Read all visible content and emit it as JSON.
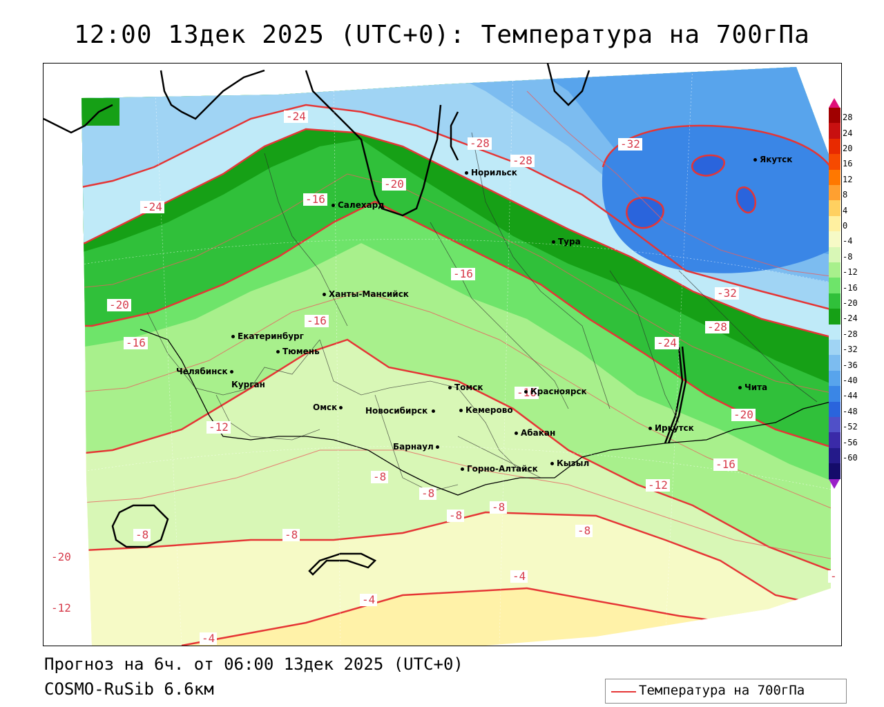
{
  "title": "12:00 13дек 2025 (UTC+0): Температура на 700гПа",
  "footer": {
    "line1": "Прогноз на 6ч. от 06:00 13дек 2025 (UTC+0)",
    "line2": "COSMO-RuSib 6.6км"
  },
  "legend": {
    "label": "Температура на 700гПа",
    "color": "#e53535"
  },
  "colorbar": {
    "ticks": [
      "28",
      "24",
      "20",
      "16",
      "12",
      "8",
      "4",
      "0",
      "-4",
      "-8",
      "-12",
      "-16",
      "-20",
      "-24",
      "-28",
      "-32",
      "-36",
      "-40",
      "-44",
      "-48",
      "-52",
      "-56",
      "-60"
    ],
    "colors": [
      "#a00000",
      "#c81010",
      "#e82a00",
      "#f64a00",
      "#ff7800",
      "#ffa030",
      "#ffd060",
      "#fff0a0",
      "#f6fac6",
      "#d8f7b6",
      "#a8f08c",
      "#6ee46a",
      "#30c03a",
      "#16a016",
      "#bfeaf8",
      "#a0d4f4",
      "#7cbcf0",
      "#58a4ec",
      "#3a86e6",
      "#2a64dc",
      "#5050c8",
      "#3a2aa8",
      "#241a8a",
      "#140c6a"
    ]
  },
  "cities": [
    {
      "name": "Норильск"
    },
    {
      "name": "Якутск"
    },
    {
      "name": "Салехард"
    },
    {
      "name": "Тура"
    },
    {
      "name": "Ханты-Мансийск"
    },
    {
      "name": "Екатеринбург"
    },
    {
      "name": "Тюмень"
    },
    {
      "name": "Челябинск"
    },
    {
      "name": "Курган"
    },
    {
      "name": "Омск"
    },
    {
      "name": "Новосибирск"
    },
    {
      "name": "Томск"
    },
    {
      "name": "Кемерово"
    },
    {
      "name": "Красноярск"
    },
    {
      "name": "Абакан"
    },
    {
      "name": "Барнаул"
    },
    {
      "name": "Горно-Алтайск"
    },
    {
      "name": "Кызыл"
    },
    {
      "name": "Иркутск"
    },
    {
      "name": "Чита"
    }
  ],
  "contour_labels": [
    "-24",
    "-28",
    "-28",
    "-32",
    "-20",
    "-24",
    "-16",
    "-20",
    "-16",
    "-32",
    "-28",
    "-20",
    "-16",
    "-24",
    "-16",
    "-12",
    "-16",
    "-12",
    "-20",
    "-16",
    "-12",
    "-8",
    "-8",
    "-8",
    "-8",
    "-8",
    "-8",
    "-8",
    "-4",
    "-4",
    "-4",
    "-"
  ]
}
